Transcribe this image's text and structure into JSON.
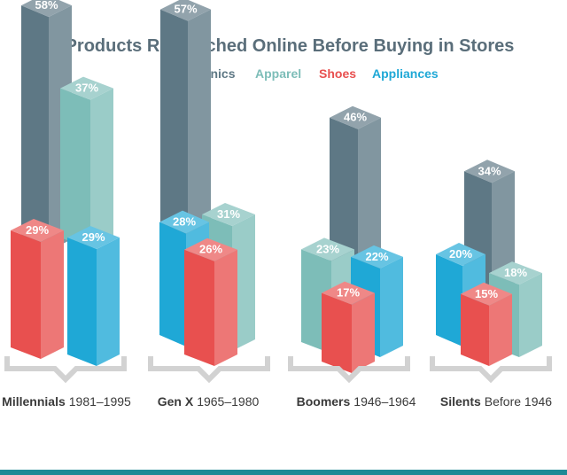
{
  "chart_data": {
    "type": "bar",
    "title": "Products Researched Online Before Buying in Stores",
    "categories": [
      "Millennials",
      "Gen X",
      "Boomers",
      "Silents"
    ],
    "category_years": [
      "1981–1995",
      "1965–1980",
      "1946–1964",
      "Before 1946"
    ],
    "series": [
      {
        "name": "Electronics",
        "values": [
          58,
          57,
          46,
          34
        ],
        "labels": [
          "58%",
          "57%",
          "46%",
          "34%"
        ]
      },
      {
        "name": "Apparel",
        "values": [
          37,
          31,
          23,
          18
        ],
        "labels": [
          "37%",
          "31%",
          "23%",
          "18%"
        ]
      },
      {
        "name": "Shoes",
        "values": [
          29,
          26,
          17,
          15
        ],
        "labels": [
          "29%",
          "26%",
          "17%",
          "15%"
        ]
      },
      {
        "name": "Appliances",
        "values": [
          29,
          28,
          22,
          20
        ],
        "labels": [
          "29%",
          "28%",
          "22%",
          "20%"
        ]
      }
    ],
    "colors": {
      "Electronics": "#5e7885",
      "Apparel": "#7dbdb8",
      "Shoes": "#e8504f",
      "Appliances": "#1fa8d6"
    },
    "legend_placement": "top-center",
    "grid": false
  }
}
